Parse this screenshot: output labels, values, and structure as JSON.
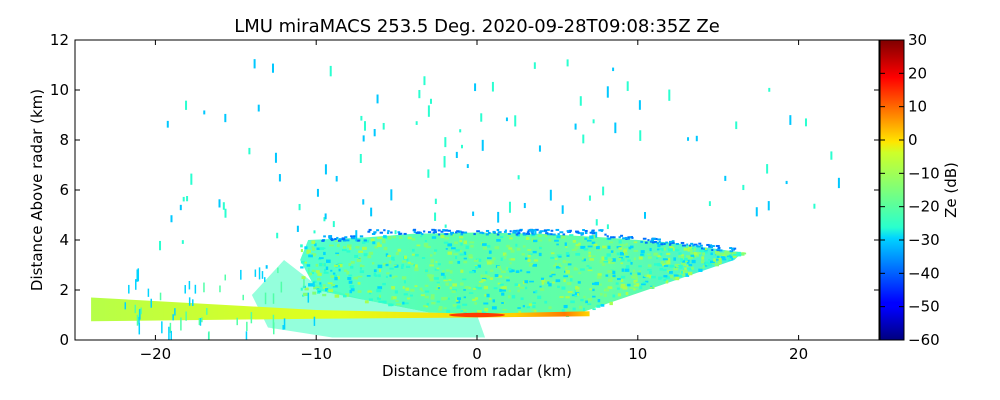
{
  "chart_data": {
    "type": "heatmap",
    "title": "LMU miraMACS 253.5 Deg. 2020-09-28T09:08:35Z  Ze",
    "xlabel": "Distance from radar (km)",
    "ylabel": "Distance Above radar  (km)",
    "xlim": [
      -25,
      25
    ],
    "ylim": [
      0,
      12
    ],
    "xticks": [
      -20,
      -10,
      0,
      10,
      20
    ],
    "yticks": [
      0,
      2,
      4,
      6,
      8,
      10,
      12
    ],
    "colorbar": {
      "label": "Ze (dB)",
      "range": [
        -60,
        30
      ],
      "ticks": [
        30,
        20,
        10,
        0,
        -10,
        -20,
        -30,
        -40,
        -50,
        -60
      ],
      "colormap": "jet"
    },
    "regions": [
      {
        "name": "cloud-layer",
        "x_range": [
          -10,
          17
        ],
        "y_range": [
          1,
          4.3
        ],
        "ze_range": [
          -30,
          -15
        ]
      },
      {
        "name": "melting-layer-band",
        "x_range": [
          -24,
          7
        ],
        "y_center": 1.0,
        "ze_range": [
          -10,
          20
        ]
      },
      {
        "name": "bright-band-max",
        "x": 0,
        "y": 1.0,
        "ze": 20
      }
    ]
  }
}
